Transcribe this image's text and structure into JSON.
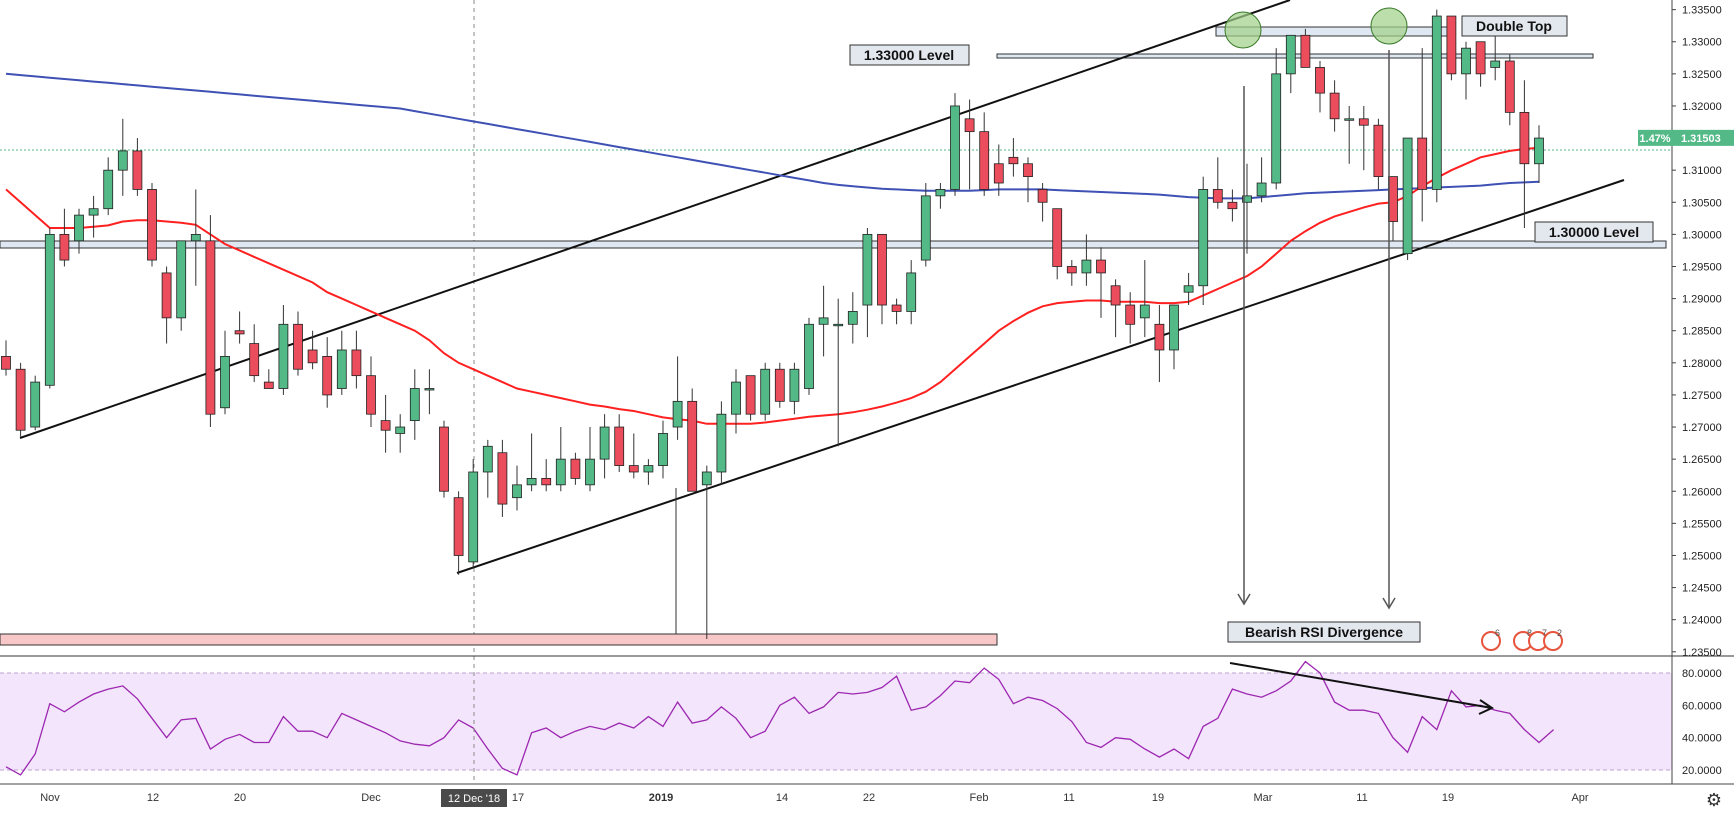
{
  "chart_data": {
    "type": "candlestick",
    "instrument_note": "",
    "price_axis": {
      "ticks": [
        "1.33500",
        "1.33000",
        "1.32500",
        "1.32000",
        "1.31500",
        "1.31000",
        "1.30500",
        "1.30000",
        "1.29500",
        "1.29000",
        "1.28500",
        "1.28000",
        "1.27500",
        "1.27000",
        "1.26500",
        "1.26000",
        "1.25500",
        "1.25000",
        "1.24500",
        "1.24000",
        "1.23500"
      ],
      "range": [
        1.2345,
        1.3365
      ],
      "last_price": "1.31503",
      "last_change": "1.47%"
    },
    "rsi_axis": {
      "ticks": [
        "80.0000",
        "60.0000",
        "40.0000",
        "20.0000"
      ],
      "range": [
        12,
        88
      ],
      "upper_band": 80,
      "lower_band": 20
    },
    "x_axis": {
      "labels": [
        "Nov",
        "12",
        "20",
        "Dec",
        "17",
        "2019",
        "14",
        "22",
        "Feb",
        "11",
        "19",
        "Mar",
        "11",
        "19",
        "Apr"
      ],
      "crosshair_label": "12 Dec '18"
    },
    "candles": [
      [
        1.281,
        1.2835,
        1.278,
        1.279
      ],
      [
        1.279,
        1.28,
        1.2685,
        1.2695
      ],
      [
        1.27,
        1.278,
        1.2695,
        1.277
      ],
      [
        1.2765,
        1.301,
        1.276,
        1.3
      ],
      [
        1.3,
        1.304,
        1.295,
        1.296
      ],
      [
        1.299,
        1.304,
        1.297,
        1.303
      ],
      [
        1.303,
        1.306,
        1.2995,
        1.304
      ],
      [
        1.304,
        1.312,
        1.303,
        1.31
      ],
      [
        1.31,
        1.318,
        1.306,
        1.313
      ],
      [
        1.313,
        1.315,
        1.306,
        1.307
      ],
      [
        1.307,
        1.308,
        1.295,
        1.296
      ],
      [
        1.294,
        1.295,
        1.283,
        1.287
      ],
      [
        1.287,
        1.299,
        1.285,
        1.299
      ],
      [
        1.299,
        1.307,
        1.292,
        1.3
      ],
      [
        1.299,
        1.303,
        1.27,
        1.272
      ],
      [
        1.273,
        1.285,
        1.272,
        1.281
      ],
      [
        1.285,
        1.288,
        1.283,
        1.2845
      ],
      [
        1.283,
        1.286,
        1.277,
        1.278
      ],
      [
        1.277,
        1.279,
        1.276,
        1.276
      ],
      [
        1.276,
        1.289,
        1.275,
        1.286
      ],
      [
        1.286,
        1.288,
        1.278,
        1.279
      ],
      [
        1.282,
        1.285,
        1.279,
        1.28
      ],
      [
        1.281,
        1.284,
        1.273,
        1.275
      ],
      [
        1.276,
        1.285,
        1.275,
        1.282
      ],
      [
        1.282,
        1.285,
        1.276,
        1.278
      ],
      [
        1.278,
        1.281,
        1.27,
        1.272
      ],
      [
        1.271,
        1.275,
        1.266,
        1.2695
      ],
      [
        1.269,
        1.272,
        1.266,
        1.27
      ],
      [
        1.271,
        1.279,
        1.268,
        1.276
      ],
      [
        1.276,
        1.279,
        1.272,
        1.276
      ],
      [
        1.27,
        1.271,
        1.259,
        1.26
      ],
      [
        1.259,
        1.26,
        1.247,
        1.25
      ],
      [
        1.249,
        1.265,
        1.248,
        1.263
      ],
      [
        1.263,
        1.268,
        1.259,
        1.267
      ],
      [
        1.266,
        1.268,
        1.256,
        1.258
      ],
      [
        1.259,
        1.264,
        1.257,
        1.261
      ],
      [
        1.261,
        1.269,
        1.26,
        1.262
      ],
      [
        1.262,
        1.265,
        1.26,
        1.261
      ],
      [
        1.261,
        1.27,
        1.26,
        1.265
      ],
      [
        1.265,
        1.266,
        1.261,
        1.262
      ],
      [
        1.261,
        1.27,
        1.26,
        1.265
      ],
      [
        1.265,
        1.272,
        1.262,
        1.27
      ],
      [
        1.27,
        1.272,
        1.263,
        1.264
      ],
      [
        1.264,
        1.269,
        1.262,
        1.263
      ],
      [
        1.263,
        1.265,
        1.261,
        1.264
      ],
      [
        1.264,
        1.271,
        1.262,
        1.269
      ],
      [
        1.27,
        1.281,
        1.268,
        1.274
      ],
      [
        1.274,
        1.276,
        1.26,
        1.26
      ],
      [
        1.261,
        1.264,
        1.237,
        1.263
      ],
      [
        1.263,
        1.274,
        1.261,
        1.272
      ],
      [
        1.272,
        1.279,
        1.269,
        1.277
      ],
      [
        1.278,
        1.278,
        1.271,
        1.272
      ],
      [
        1.272,
        1.28,
        1.271,
        1.279
      ],
      [
        1.279,
        1.28,
        1.273,
        1.274
      ],
      [
        1.274,
        1.28,
        1.272,
        1.279
      ],
      [
        1.276,
        1.287,
        1.275,
        1.286
      ],
      [
        1.286,
        1.292,
        1.281,
        1.287
      ],
      [
        1.286,
        1.29,
        1.267,
        1.286
      ],
      [
        1.286,
        1.291,
        1.283,
        1.288
      ],
      [
        1.289,
        1.301,
        1.284,
        1.3
      ],
      [
        1.3,
        1.3,
        1.286,
        1.289
      ],
      [
        1.289,
        1.29,
        1.286,
        1.288
      ],
      [
        1.288,
        1.296,
        1.286,
        1.294
      ],
      [
        1.296,
        1.308,
        1.295,
        1.306
      ],
      [
        1.306,
        1.308,
        1.304,
        1.307
      ],
      [
        1.307,
        1.322,
        1.306,
        1.32
      ],
      [
        1.318,
        1.321,
        1.307,
        1.316
      ],
      [
        1.316,
        1.319,
        1.306,
        1.307
      ],
      [
        1.311,
        1.314,
        1.306,
        1.308
      ],
      [
        1.312,
        1.315,
        1.309,
        1.311
      ],
      [
        1.311,
        1.312,
        1.305,
        1.309
      ],
      [
        1.307,
        1.308,
        1.302,
        1.305
      ],
      [
        1.304,
        1.304,
        1.293,
        1.295
      ],
      [
        1.295,
        1.296,
        1.292,
        1.294
      ],
      [
        1.294,
        1.3,
        1.292,
        1.296
      ],
      [
        1.296,
        1.298,
        1.287,
        1.294
      ],
      [
        1.292,
        1.293,
        1.284,
        1.289
      ],
      [
        1.289,
        1.291,
        1.283,
        1.286
      ],
      [
        1.287,
        1.296,
        1.284,
        1.289
      ],
      [
        1.286,
        1.289,
        1.277,
        1.282
      ],
      [
        1.282,
        1.289,
        1.279,
        1.289
      ],
      [
        1.291,
        1.294,
        1.289,
        1.292
      ],
      [
        1.292,
        1.309,
        1.289,
        1.307
      ],
      [
        1.307,
        1.312,
        1.304,
        1.305
      ],
      [
        1.305,
        1.307,
        1.302,
        1.304
      ],
      [
        1.305,
        1.311,
        1.297,
        1.306
      ],
      [
        1.306,
        1.312,
        1.305,
        1.308
      ],
      [
        1.308,
        1.329,
        1.307,
        1.325
      ],
      [
        1.325,
        1.331,
        1.322,
        1.331
      ],
      [
        1.331,
        1.332,
        1.326,
        1.326
      ],
      [
        1.326,
        1.327,
        1.319,
        1.322
      ],
      [
        1.322,
        1.324,
        1.316,
        1.318
      ],
      [
        1.318,
        1.32,
        1.311,
        1.318
      ],
      [
        1.318,
        1.32,
        1.31,
        1.317
      ],
      [
        1.317,
        1.318,
        1.307,
        1.309
      ],
      [
        1.309,
        1.309,
        1.299,
        1.302
      ],
      [
        1.297,
        1.315,
        1.296,
        1.315
      ],
      [
        1.315,
        1.329,
        1.302,
        1.307
      ],
      [
        1.307,
        1.335,
        1.305,
        1.334
      ],
      [
        1.334,
        1.334,
        1.324,
        1.325
      ],
      [
        1.325,
        1.33,
        1.321,
        1.329
      ],
      [
        1.33,
        1.33,
        1.323,
        1.325
      ],
      [
        1.326,
        1.331,
        1.324,
        1.327
      ],
      [
        1.327,
        1.328,
        1.317,
        1.319
      ],
      [
        1.319,
        1.324,
        1.301,
        1.311
      ],
      [
        1.311,
        1.317,
        1.308,
        1.315
      ]
    ],
    "ema_red": [
      1.307,
      1.305,
      1.303,
      1.301,
      1.301,
      1.301,
      1.3012,
      1.3014,
      1.302,
      1.3022,
      1.3022,
      1.302,
      1.3018,
      1.3015,
      1.3,
      1.2985,
      1.2975,
      1.2965,
      1.2955,
      1.2945,
      1.2935,
      1.2925,
      1.291,
      1.29,
      1.289,
      1.288,
      1.287,
      1.286,
      1.285,
      1.2835,
      1.2815,
      1.28,
      1.279,
      1.278,
      1.277,
      1.276,
      1.2755,
      1.275,
      1.2745,
      1.274,
      1.2735,
      1.2732,
      1.2728,
      1.2725,
      1.272,
      1.2715,
      1.2712,
      1.271,
      1.2705,
      1.2705,
      1.2705,
      1.2705,
      1.2707,
      1.271,
      1.2713,
      1.2716,
      1.2718,
      1.272,
      1.2723,
      1.2727,
      1.2732,
      1.2738,
      1.2745,
      1.2755,
      1.277,
      1.279,
      1.281,
      1.283,
      1.285,
      1.2865,
      1.2878,
      1.2888,
      1.2893,
      1.2895,
      1.2897,
      1.2897,
      1.2895,
      1.2895,
      1.2895,
      1.2893,
      1.2893,
      1.2895,
      1.2905,
      1.2915,
      1.2925,
      1.2935,
      1.295,
      1.297,
      1.299,
      1.3005,
      1.3018,
      1.3028,
      1.3035,
      1.3042,
      1.3048,
      1.305,
      1.306,
      1.3075,
      1.3088,
      1.31,
      1.311,
      1.312,
      1.3125,
      1.313,
      1.3133,
      1.3135
    ],
    "ema_blue": [
      1.325,
      1.3248,
      1.3246,
      1.3244,
      1.3242,
      1.324,
      1.3238,
      1.3236,
      1.3234,
      1.3232,
      1.323,
      1.3228,
      1.3226,
      1.3224,
      1.3222,
      1.322,
      1.3218,
      1.3216,
      1.3214,
      1.3212,
      1.321,
      1.3208,
      1.3206,
      1.3204,
      1.3202,
      1.32,
      1.3198,
      1.3196,
      1.3192,
      1.3188,
      1.3184,
      1.318,
      1.3176,
      1.3172,
      1.3168,
      1.3164,
      1.316,
      1.3156,
      1.3152,
      1.3148,
      1.3144,
      1.314,
      1.3136,
      1.3132,
      1.3128,
      1.3124,
      1.312,
      1.3116,
      1.3112,
      1.3108,
      1.3104,
      1.31,
      1.3096,
      1.3092,
      1.3088,
      1.3084,
      1.308,
      1.3077,
      1.3075,
      1.3073,
      1.3071,
      1.307,
      1.3069,
      1.3068,
      1.3068,
      1.3068,
      1.3068,
      1.3069,
      1.307,
      1.307,
      1.307,
      1.307,
      1.3069,
      1.3068,
      1.3067,
      1.3066,
      1.3065,
      1.3064,
      1.3063,
      1.3062,
      1.306,
      1.3058,
      1.3057,
      1.3056,
      1.3056,
      1.3056,
      1.3058,
      1.306,
      1.3062,
      1.3064,
      1.3065,
      1.3066,
      1.3067,
      1.3068,
      1.3069,
      1.307,
      1.3071,
      1.3072,
      1.3073,
      1.3074,
      1.3075,
      1.3076,
      1.3078,
      1.308,
      1.3081,
      1.3082
    ],
    "rsi": [
      22,
      17,
      30,
      61,
      56,
      62,
      67,
      70,
      72,
      64,
      52,
      40,
      51,
      52,
      33,
      39,
      42,
      37,
      37,
      53,
      44,
      44,
      40,
      55,
      51,
      47,
      43,
      38,
      36,
      35,
      40,
      51,
      46,
      33,
      21,
      17,
      43,
      46,
      40,
      44,
      47,
      45,
      49,
      46,
      53,
      47,
      62,
      49,
      51,
      59,
      52,
      40,
      44,
      60,
      65,
      55,
      59,
      68,
      67,
      68,
      71,
      78,
      57,
      59,
      66,
      75,
      74,
      83,
      76,
      61,
      65,
      63,
      58,
      50,
      37,
      34,
      40,
      39,
      33,
      28,
      33,
      27,
      47,
      52,
      70,
      67,
      65,
      69,
      75,
      87,
      80,
      62,
      57,
      57,
      55,
      40,
      31,
      53,
      45,
      69,
      59,
      60,
      57,
      55,
      45,
      37,
      45
    ],
    "annotations": {
      "double_top": "Double Top",
      "level_133": "1.33000 Level",
      "level_130": "1.30000 Level",
      "bearish_div": "Bearish RSI Divergence"
    },
    "event_badges": [
      "6",
      "8",
      "7",
      "2"
    ],
    "colors": {
      "up": "#53b987",
      "down": "#eb4d5c",
      "ema_red": "#ff2020",
      "ema_blue": "#3f51b5",
      "rsi_line": "#9c27b0",
      "rsi_band": "#f3e5fc"
    }
  }
}
